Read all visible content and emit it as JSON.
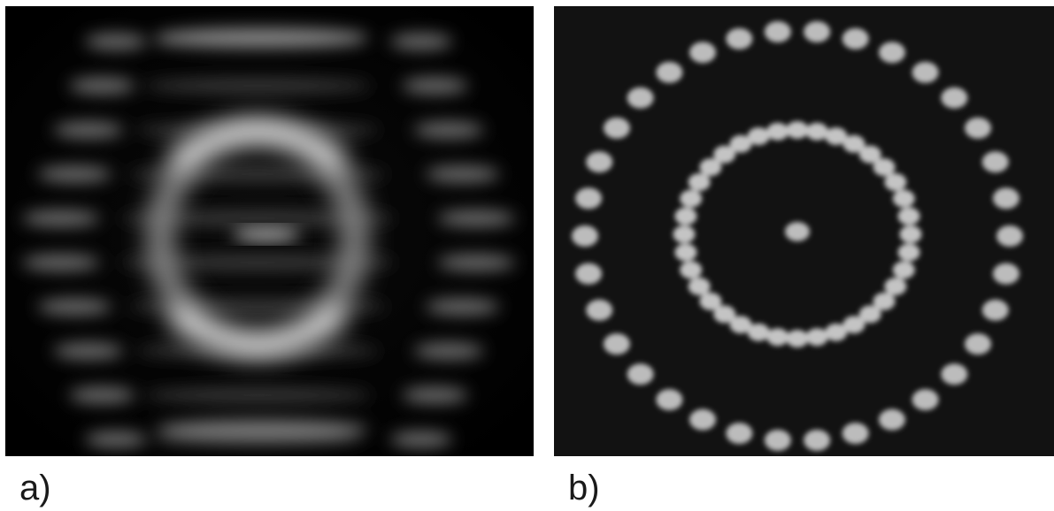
{
  "figure": {
    "panels": [
      {
        "id": "a",
        "label": "a)",
        "pattern": "fringed-ring"
      },
      {
        "id": "b",
        "label": "b)",
        "pattern": "spot-rings"
      }
    ],
    "colors": {
      "background": "#ffffff",
      "panel_a_bg": "#000000",
      "panel_b_bg": "#111111",
      "glow": "#e8e8e8",
      "label": "#1a1a1a"
    }
  }
}
